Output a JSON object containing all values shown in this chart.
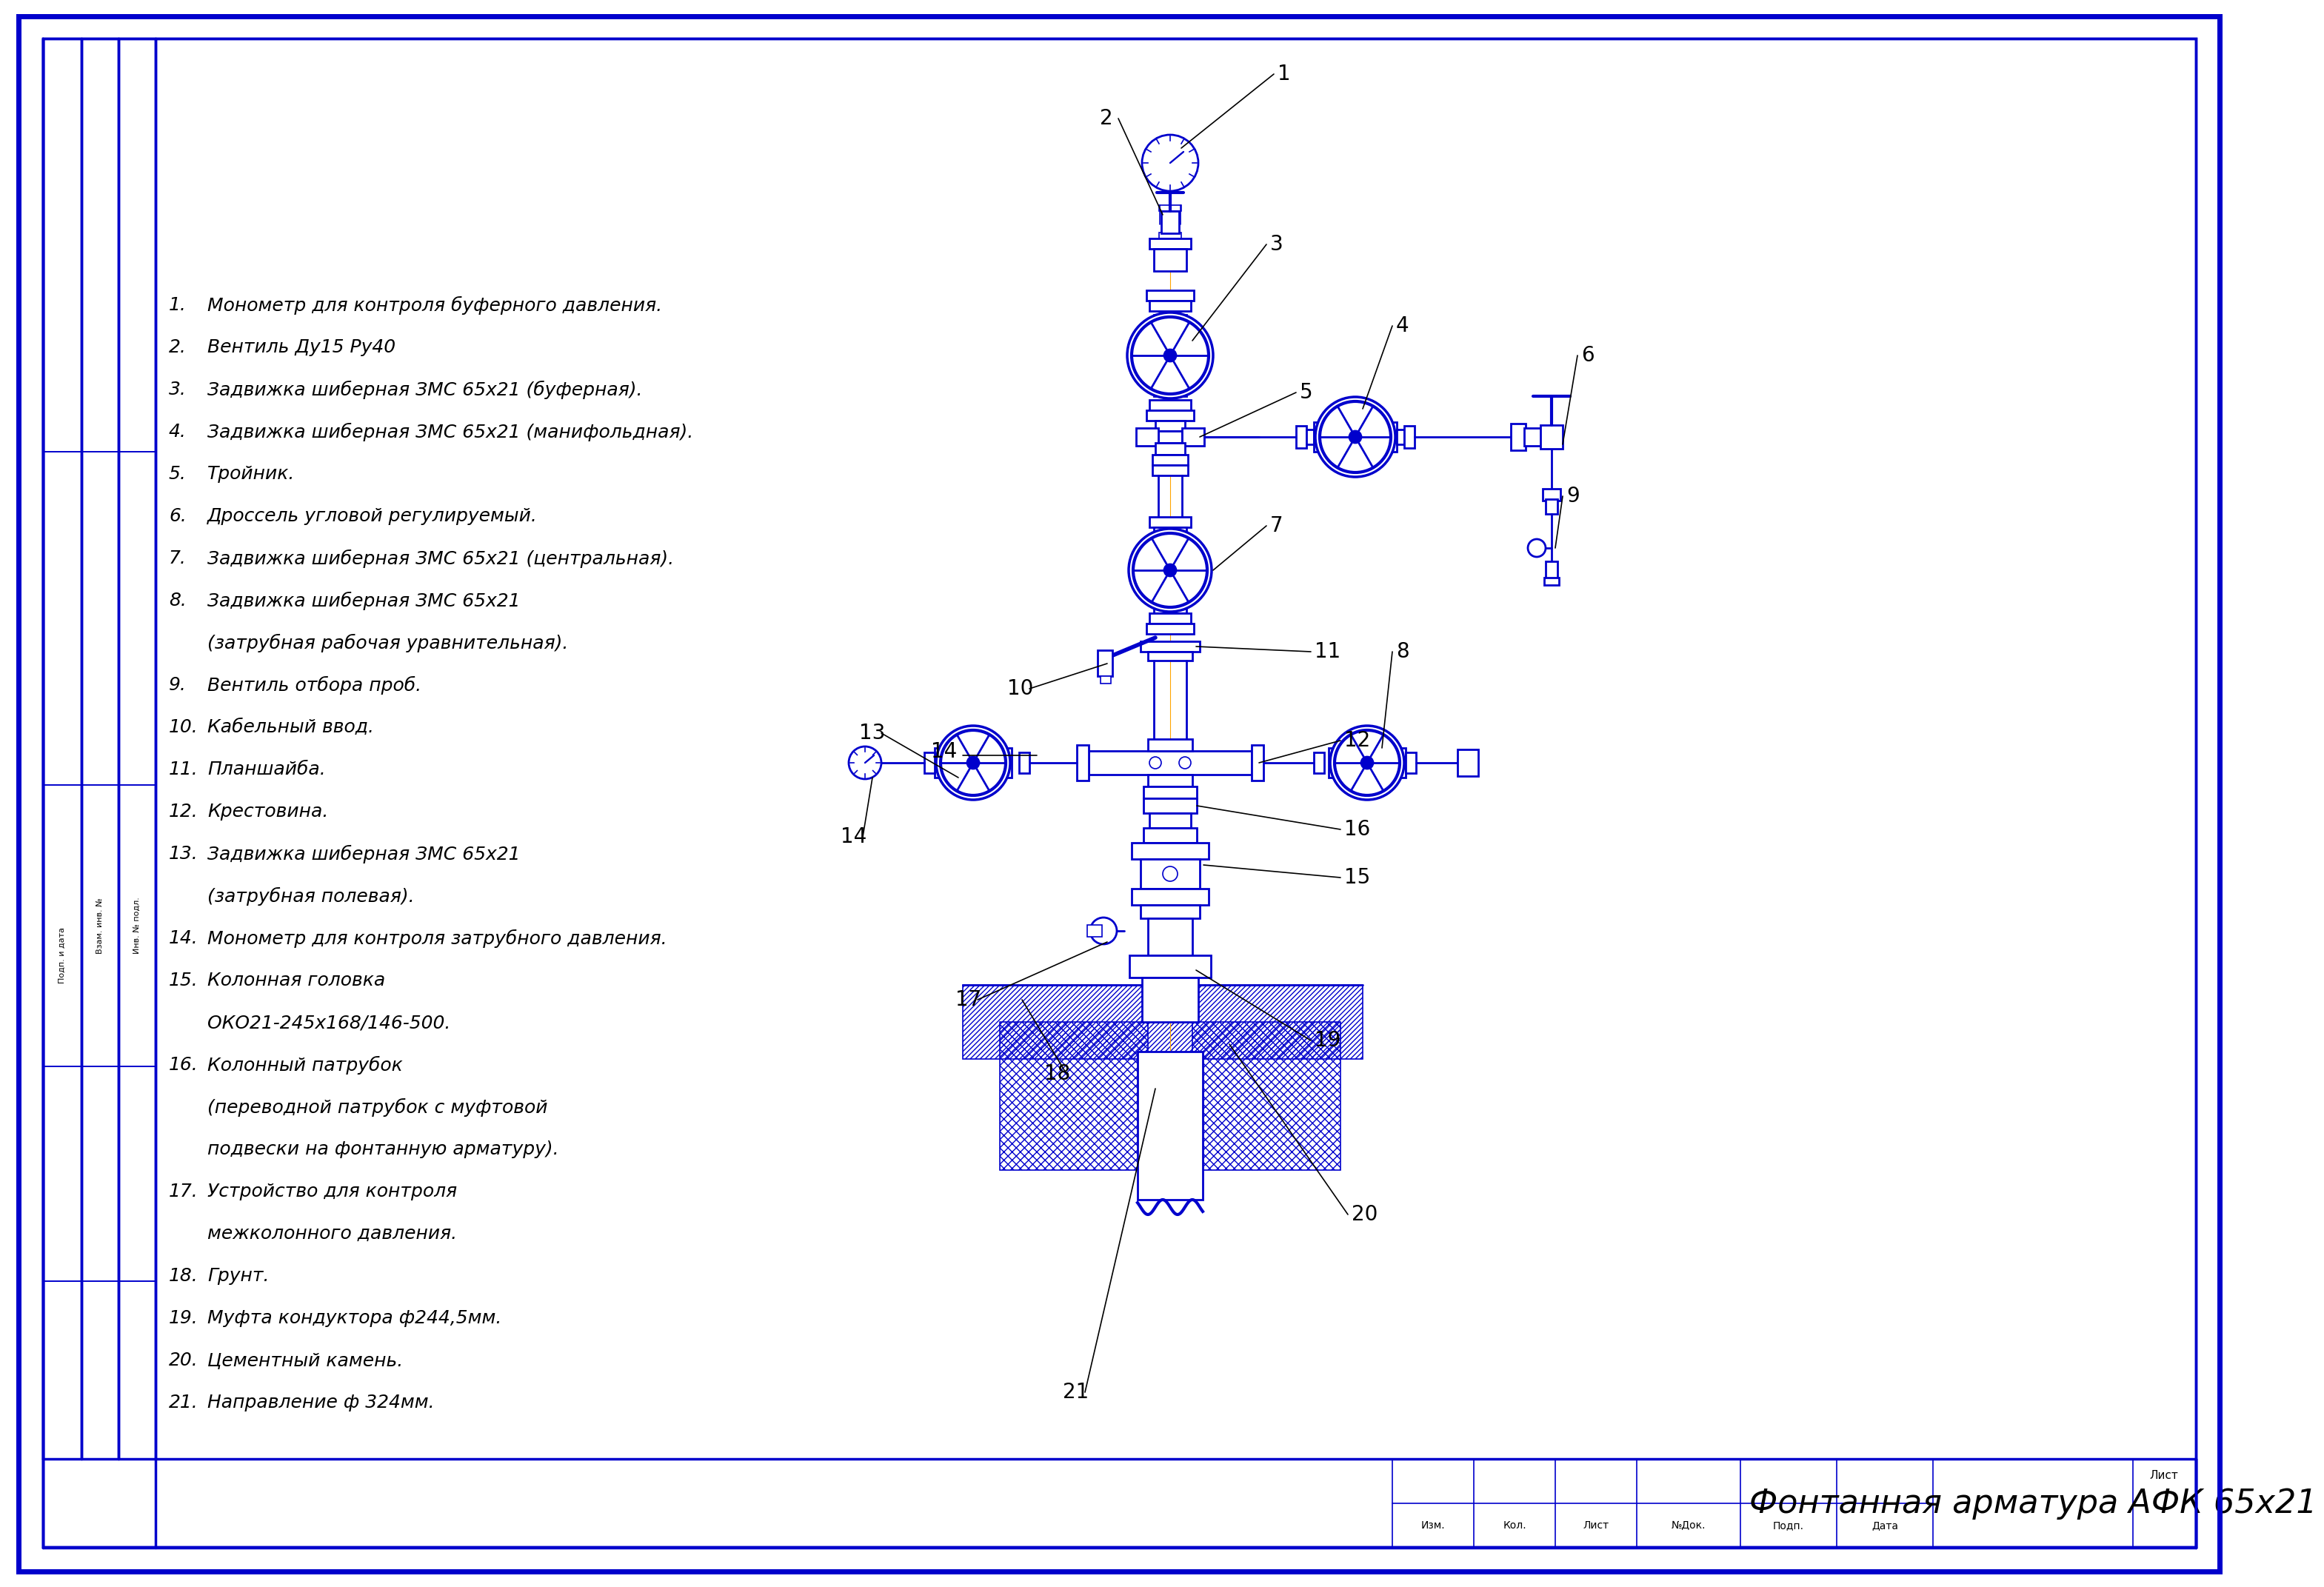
{
  "title": "Фонтанная арматура АФК 65х21",
  "bg_color": "#ffffff",
  "border_color": "#0000cc",
  "draw_color": "#0000cc",
  "legend_items": [
    [
      "1.",
      "Монометр для контроля буферного давления."
    ],
    [
      "2.",
      "Вентиль Ду15 Ру40"
    ],
    [
      "3.",
      "Задвижка шиберная ЗМС 65х21 (буферная)."
    ],
    [
      "4.",
      "Задвижка шиберная ЗМС 65х21 (манифольдная)."
    ],
    [
      "5.",
      "Тройник."
    ],
    [
      "6.",
      "Дроссель угловой регулируемый."
    ],
    [
      "7.",
      "Задвижка шиберная ЗМС 65х21 (центральная)."
    ],
    [
      "8.",
      "Задвижка шиберная ЗМС 65х21"
    ],
    [
      "",
      "(затрубная рабочая уравнительная)."
    ],
    [
      "9.",
      "Вентиль отбора проб."
    ],
    [
      "10.",
      "Кабельный ввод."
    ],
    [
      "11.",
      "Планшайба."
    ],
    [
      "12.",
      "Крестовина."
    ],
    [
      "13.",
      "Задвижка шиберная ЗМС 65х21"
    ],
    [
      "",
      "(затрубная полевая)."
    ],
    [
      "14.",
      "Монометр для контроля затрубного давления."
    ],
    [
      "15.",
      "Колонная головка"
    ],
    [
      "",
      "ОКО21-245х168/146-500."
    ],
    [
      "16.",
      "Колонный патрубок"
    ],
    [
      "",
      "(переводной патрубок с муфтовой"
    ],
    [
      "",
      "подвески на фонтанную арматуру)."
    ],
    [
      "17.",
      "Устройство для контроля"
    ],
    [
      "",
      "межколонного давления."
    ],
    [
      "18.",
      "Грунт."
    ],
    [
      "19.",
      "Муфта кондуктора ф244,5мм."
    ],
    [
      "20.",
      "Цементный камень."
    ],
    [
      "21.",
      "Направление ф 324мм."
    ]
  ],
  "table_headers_top": [
    "Изм.",
    "Кол.",
    "Лист",
    "№Док.",
    "Подп.",
    "Дата"
  ],
  "sheet_label": "Лист"
}
